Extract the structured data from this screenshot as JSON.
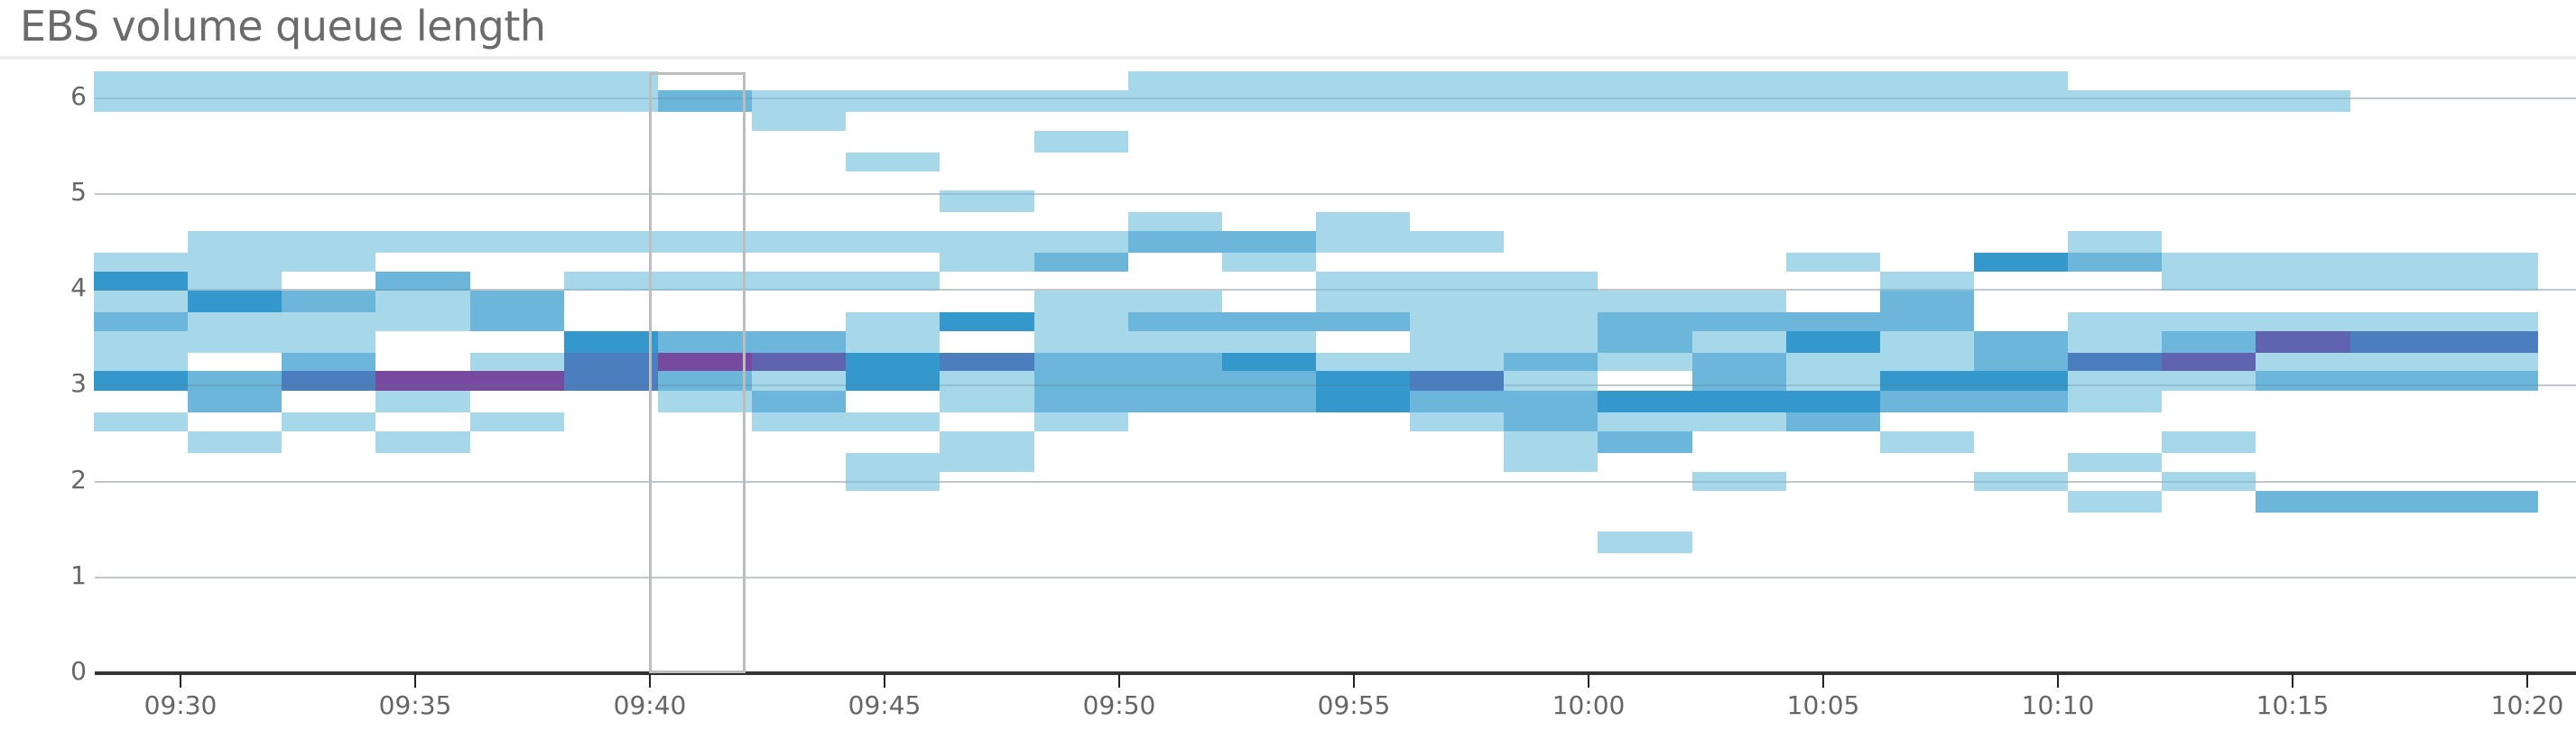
{
  "header": {
    "title": "EBS volume queue length"
  },
  "chart_data": {
    "type": "heatmap",
    "title": "EBS volume queue length",
    "xlabel": "",
    "ylabel": "",
    "ylim": [
      0,
      6.3
    ],
    "y_ticks": [
      0,
      1,
      2,
      3,
      4,
      5,
      6
    ],
    "x_ticks": [
      "09:30",
      "09:35",
      "09:40",
      "09:45",
      "09:50",
      "09:55",
      "10:00",
      "10:05",
      "10:10",
      "10:15",
      "10:20"
    ],
    "grid": true,
    "legend": "none",
    "bucket_minutes": 2,
    "start_time": "09:28",
    "columns": [
      "09:28",
      "09:30",
      "09:32",
      "09:34",
      "09:36",
      "09:38",
      "09:40",
      "09:42",
      "09:44",
      "09:46",
      "09:48",
      "09:50",
      "09:52",
      "09:54",
      "09:56",
      "09:58",
      "10:00",
      "10:02",
      "10:04",
      "10:06",
      "10:08",
      "10:10",
      "10:12",
      "10:14",
      "10:16",
      "10:18"
    ],
    "color_scale": {
      "1": "#a6d8ea",
      "2": "#6cb6dc",
      "3": "#3598cd",
      "4": "#4a7ebf",
      "5": "#6064b0",
      "6": "#774aa0"
    },
    "bands": {
      "T": [
        5.86,
        6.28
      ],
      "Tb": [
        5.86,
        6.08
      ],
      "Tc": [
        5.66,
        5.86
      ],
      "Td": [
        5.43,
        5.66
      ],
      "Te": [
        5.24,
        5.43
      ],
      "Tf": [
        4.81,
        5.04
      ],
      "Tg": [
        4.61,
        4.81
      ],
      "A": [
        4.39,
        4.61
      ],
      "B": [
        4.19,
        4.39
      ],
      "C": [
        3.99,
        4.19
      ],
      "D": [
        3.77,
        3.99
      ],
      "E": [
        3.57,
        3.77
      ],
      "F": [
        3.34,
        3.57
      ],
      "G": [
        3.15,
        3.34
      ],
      "H": [
        2.95,
        3.15
      ],
      "I": [
        2.72,
        2.95
      ],
      "J": [
        2.52,
        2.72
      ],
      "K": [
        2.3,
        2.52
      ],
      "L": [
        2.1,
        2.3
      ],
      "M": [
        1.9,
        2.1
      ],
      "N": [
        1.68,
        1.9
      ],
      "O": [
        1.25,
        1.48
      ]
    },
    "cells": [
      [
        0,
        "T",
        1
      ],
      [
        0,
        "B",
        1
      ],
      [
        0,
        "C",
        3
      ],
      [
        0,
        "D",
        1
      ],
      [
        0,
        "E",
        2
      ],
      [
        0,
        "F",
        1
      ],
      [
        0,
        "G",
        1
      ],
      [
        0,
        "H",
        3
      ],
      [
        0,
        "J",
        1
      ],
      [
        1,
        "T",
        1
      ],
      [
        1,
        "A",
        1
      ],
      [
        1,
        "B",
        1
      ],
      [
        1,
        "C",
        1
      ],
      [
        1,
        "D",
        3
      ],
      [
        1,
        "E",
        1
      ],
      [
        1,
        "F",
        1
      ],
      [
        1,
        "H",
        2
      ],
      [
        1,
        "I",
        2
      ],
      [
        1,
        "K",
        1
      ],
      [
        2,
        "T",
        1
      ],
      [
        2,
        "A",
        1
      ],
      [
        2,
        "B",
        1
      ],
      [
        2,
        "D",
        2
      ],
      [
        2,
        "E",
        1
      ],
      [
        2,
        "F",
        1
      ],
      [
        2,
        "G",
        2
      ],
      [
        2,
        "H",
        4
      ],
      [
        2,
        "J",
        1
      ],
      [
        3,
        "T",
        1
      ],
      [
        3,
        "A",
        1
      ],
      [
        3,
        "C",
        2
      ],
      [
        3,
        "D",
        1
      ],
      [
        3,
        "E",
        1
      ],
      [
        3,
        "H",
        6
      ],
      [
        3,
        "I",
        1
      ],
      [
        3,
        "K",
        1
      ],
      [
        4,
        "T",
        1
      ],
      [
        4,
        "A",
        1
      ],
      [
        4,
        "D",
        2
      ],
      [
        4,
        "E",
        2
      ],
      [
        4,
        "G",
        1
      ],
      [
        4,
        "H",
        6
      ],
      [
        4,
        "J",
        1
      ],
      [
        5,
        "T",
        1
      ],
      [
        5,
        "A",
        1
      ],
      [
        5,
        "C",
        1
      ],
      [
        5,
        "F",
        3
      ],
      [
        5,
        "G",
        4
      ],
      [
        5,
        "H",
        4
      ],
      [
        6,
        "Tb",
        2
      ],
      [
        6,
        "A",
        1
      ],
      [
        6,
        "C",
        1
      ],
      [
        6,
        "F",
        2
      ],
      [
        6,
        "G",
        6
      ],
      [
        6,
        "H",
        2
      ],
      [
        6,
        "I",
        1
      ],
      [
        7,
        "Tb",
        1
      ],
      [
        7,
        "Tc",
        1
      ],
      [
        7,
        "A",
        1
      ],
      [
        7,
        "C",
        1
      ],
      [
        7,
        "F",
        2
      ],
      [
        7,
        "G",
        5
      ],
      [
        7,
        "H",
        1
      ],
      [
        7,
        "I",
        2
      ],
      [
        7,
        "J",
        1
      ],
      [
        8,
        "Tb",
        1
      ],
      [
        8,
        "Te",
        1
      ],
      [
        8,
        "A",
        1
      ],
      [
        8,
        "C",
        1
      ],
      [
        8,
        "E",
        1
      ],
      [
        8,
        "F",
        1
      ],
      [
        8,
        "G",
        3
      ],
      [
        8,
        "H",
        3
      ],
      [
        8,
        "J",
        1
      ],
      [
        8,
        "L",
        1
      ],
      [
        8,
        "M",
        1
      ],
      [
        9,
        "Tb",
        1
      ],
      [
        9,
        "Tf",
        1
      ],
      [
        9,
        "A",
        1
      ],
      [
        9,
        "B",
        1
      ],
      [
        9,
        "E",
        3
      ],
      [
        9,
        "G",
        4
      ],
      [
        9,
        "H",
        1
      ],
      [
        9,
        "I",
        1
      ],
      [
        9,
        "K",
        1
      ],
      [
        9,
        "L",
        1
      ],
      [
        10,
        "Tb",
        1
      ],
      [
        10,
        "Td",
        1
      ],
      [
        10,
        "A",
        1
      ],
      [
        10,
        "B",
        2
      ],
      [
        10,
        "D",
        1
      ],
      [
        10,
        "E",
        1
      ],
      [
        10,
        "F",
        1
      ],
      [
        10,
        "G",
        2
      ],
      [
        10,
        "H",
        2
      ],
      [
        10,
        "I",
        2
      ],
      [
        10,
        "J",
        1
      ],
      [
        11,
        "T",
        1
      ],
      [
        11,
        "Tg",
        1
      ],
      [
        11,
        "A",
        2
      ],
      [
        11,
        "D",
        1
      ],
      [
        11,
        "E",
        2
      ],
      [
        11,
        "F",
        1
      ],
      [
        11,
        "G",
        2
      ],
      [
        11,
        "H",
        2
      ],
      [
        11,
        "I",
        2
      ],
      [
        12,
        "T",
        1
      ],
      [
        12,
        "A",
        2
      ],
      [
        12,
        "B",
        1
      ],
      [
        12,
        "E",
        2
      ],
      [
        12,
        "F",
        1
      ],
      [
        12,
        "G",
        3
      ],
      [
        12,
        "H",
        2
      ],
      [
        12,
        "I",
        2
      ],
      [
        13,
        "T",
        1
      ],
      [
        13,
        "Tg",
        1
      ],
      [
        13,
        "A",
        1
      ],
      [
        13,
        "C",
        1
      ],
      [
        13,
        "D",
        1
      ],
      [
        13,
        "E",
        2
      ],
      [
        13,
        "G",
        1
      ],
      [
        13,
        "H",
        3
      ],
      [
        13,
        "I",
        3
      ],
      [
        14,
        "T",
        1
      ],
      [
        14,
        "A",
        1
      ],
      [
        14,
        "C",
        1
      ],
      [
        14,
        "D",
        1
      ],
      [
        14,
        "E",
        1
      ],
      [
        14,
        "F",
        1
      ],
      [
        14,
        "G",
        1
      ],
      [
        14,
        "H",
        4
      ],
      [
        14,
        "I",
        2
      ],
      [
        14,
        "J",
        1
      ],
      [
        15,
        "T",
        1
      ],
      [
        15,
        "C",
        1
      ],
      [
        15,
        "D",
        1
      ],
      [
        15,
        "E",
        1
      ],
      [
        15,
        "F",
        1
      ],
      [
        15,
        "G",
        2
      ],
      [
        15,
        "H",
        1
      ],
      [
        15,
        "I",
        2
      ],
      [
        15,
        "J",
        2
      ],
      [
        15,
        "K",
        1
      ],
      [
        15,
        "L",
        1
      ],
      [
        16,
        "T",
        1
      ],
      [
        16,
        "D",
        1
      ],
      [
        16,
        "E",
        2
      ],
      [
        16,
        "F",
        2
      ],
      [
        16,
        "G",
        1
      ],
      [
        16,
        "I",
        3
      ],
      [
        16,
        "J",
        1
      ],
      [
        16,
        "K",
        2
      ],
      [
        16,
        "O",
        1
      ],
      [
        17,
        "T",
        1
      ],
      [
        17,
        "D",
        1
      ],
      [
        17,
        "E",
        2
      ],
      [
        17,
        "F",
        1
      ],
      [
        17,
        "G",
        2
      ],
      [
        17,
        "H",
        2
      ],
      [
        17,
        "I",
        3
      ],
      [
        17,
        "J",
        1
      ],
      [
        17,
        "M",
        1
      ],
      [
        18,
        "T",
        1
      ],
      [
        18,
        "B",
        1
      ],
      [
        18,
        "E",
        2
      ],
      [
        18,
        "F",
        3
      ],
      [
        18,
        "G",
        1
      ],
      [
        18,
        "H",
        1
      ],
      [
        18,
        "I",
        3
      ],
      [
        18,
        "J",
        2
      ],
      [
        19,
        "T",
        1
      ],
      [
        19,
        "C",
        1
      ],
      [
        19,
        "D",
        2
      ],
      [
        19,
        "E",
        2
      ],
      [
        19,
        "F",
        1
      ],
      [
        19,
        "G",
        1
      ],
      [
        19,
        "H",
        3
      ],
      [
        19,
        "I",
        2
      ],
      [
        19,
        "K",
        1
      ],
      [
        20,
        "T",
        1
      ],
      [
        20,
        "B",
        3
      ],
      [
        20,
        "F",
        2
      ],
      [
        20,
        "G",
        2
      ],
      [
        20,
        "H",
        3
      ],
      [
        20,
        "I",
        2
      ],
      [
        20,
        "M",
        1
      ],
      [
        21,
        "Tb",
        1
      ],
      [
        21,
        "A",
        1
      ],
      [
        21,
        "B",
        2
      ],
      [
        21,
        "E",
        1
      ],
      [
        21,
        "F",
        1
      ],
      [
        21,
        "G",
        4
      ],
      [
        21,
        "H",
        1
      ],
      [
        21,
        "I",
        1
      ],
      [
        21,
        "L",
        1
      ],
      [
        21,
        "N",
        1
      ],
      [
        22,
        "Tb",
        1
      ],
      [
        22,
        "B",
        1
      ],
      [
        22,
        "C",
        1
      ],
      [
        22,
        "E",
        1
      ],
      [
        22,
        "F",
        2
      ],
      [
        22,
        "G",
        5
      ],
      [
        22,
        "H",
        1
      ],
      [
        22,
        "K",
        1
      ],
      [
        22,
        "M",
        1
      ],
      [
        23,
        "Tb",
        1
      ],
      [
        23,
        "B",
        1
      ],
      [
        23,
        "C",
        1
      ],
      [
        23,
        "E",
        1
      ],
      [
        23,
        "F",
        5
      ],
      [
        23,
        "G",
        1
      ],
      [
        23,
        "H",
        2
      ],
      [
        23,
        "N",
        2
      ],
      [
        24,
        "B",
        1
      ],
      [
        24,
        "C",
        1
      ],
      [
        24,
        "E",
        1
      ],
      [
        24,
        "F",
        4
      ],
      [
        24,
        "G",
        1
      ],
      [
        24,
        "H",
        2
      ],
      [
        24,
        "N",
        2
      ],
      [
        25,
        "B",
        1
      ],
      [
        25,
        "C",
        1
      ],
      [
        25,
        "E",
        1
      ],
      [
        25,
        "F",
        4
      ],
      [
        25,
        "G",
        1
      ],
      [
        25,
        "H",
        2
      ],
      [
        25,
        "N",
        2
      ]
    ],
    "selection": {
      "from": "09:40",
      "to": "09:42"
    }
  }
}
